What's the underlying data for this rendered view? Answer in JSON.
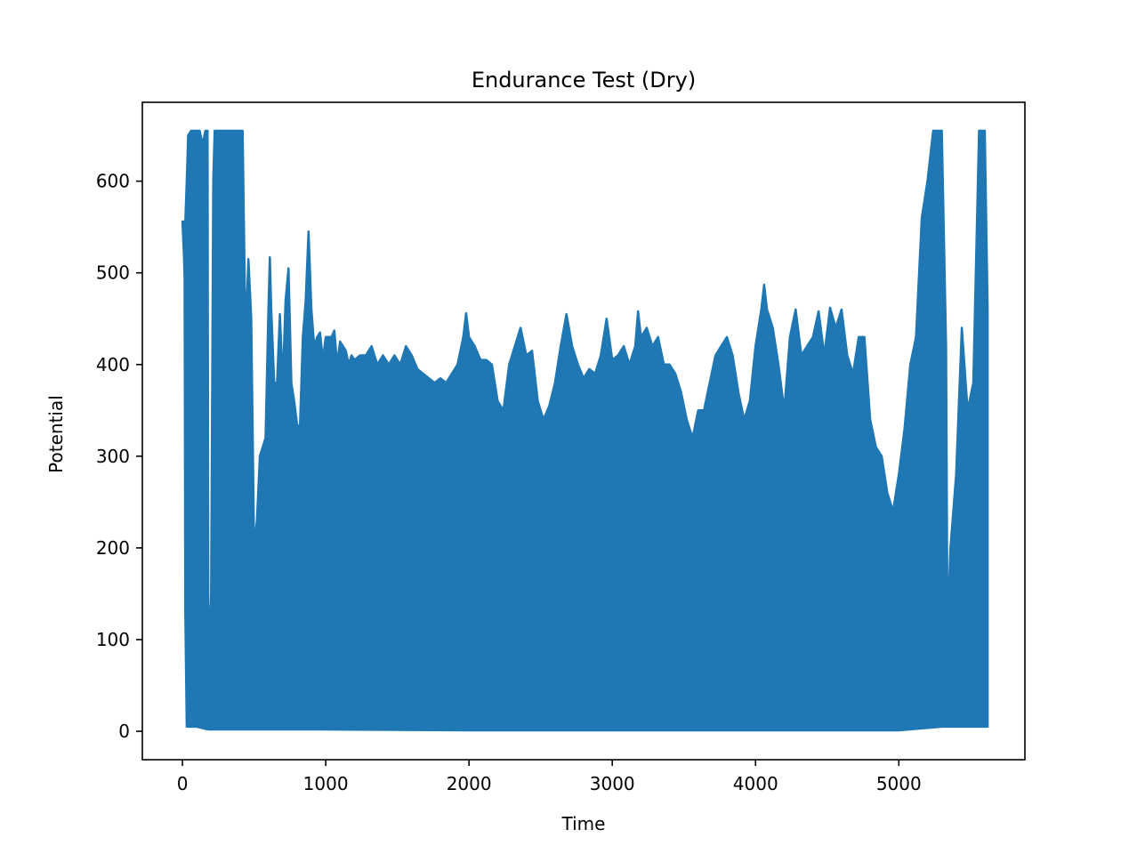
{
  "chart_data": {
    "type": "line",
    "title": "Endurance Test (Dry)",
    "xlabel": "Time",
    "ylabel": "Potential",
    "xlim": [
      -280,
      5880
    ],
    "ylim": [
      -31,
      686
    ],
    "xticks": [
      0,
      1000,
      2000,
      3000,
      4000,
      5000
    ],
    "yticks": [
      0,
      100,
      200,
      300,
      400,
      500,
      600
    ],
    "grid": false,
    "legend": "none",
    "series_color": "#1f77b4",
    "series": [
      {
        "upper_envelope": [
          [
            0,
            556
          ],
          [
            10,
            556
          ],
          [
            15,
            495
          ],
          [
            20,
            556
          ],
          [
            30,
            600
          ],
          [
            40,
            650
          ],
          [
            60,
            655
          ],
          [
            120,
            655
          ],
          [
            140,
            640
          ],
          [
            160,
            655
          ],
          [
            175,
            655
          ],
          [
            180,
            140
          ],
          [
            190,
            100
          ],
          [
            200,
            150
          ],
          [
            215,
            600
          ],
          [
            225,
            655
          ],
          [
            300,
            655
          ],
          [
            380,
            655
          ],
          [
            420,
            655
          ],
          [
            440,
            430
          ],
          [
            460,
            515
          ],
          [
            480,
            450
          ],
          [
            500,
            200
          ],
          [
            520,
            230
          ],
          [
            540,
            300
          ],
          [
            560,
            310
          ],
          [
            580,
            320
          ],
          [
            600,
            460
          ],
          [
            610,
            517
          ],
          [
            620,
            460
          ],
          [
            640,
            380
          ],
          [
            660,
            380
          ],
          [
            680,
            455
          ],
          [
            700,
            380
          ],
          [
            720,
            470
          ],
          [
            740,
            505
          ],
          [
            760,
            380
          ],
          [
            780,
            360
          ],
          [
            800,
            335
          ],
          [
            820,
            330
          ],
          [
            840,
            430
          ],
          [
            860,
            470
          ],
          [
            880,
            545
          ],
          [
            900,
            460
          ],
          [
            920,
            420
          ],
          [
            940,
            430
          ],
          [
            960,
            435
          ],
          [
            980,
            405
          ],
          [
            1000,
            430
          ],
          [
            1020,
            430
          ],
          [
            1040,
            430
          ],
          [
            1060,
            437
          ],
          [
            1080,
            400
          ],
          [
            1100,
            425
          ],
          [
            1120,
            420
          ],
          [
            1140,
            415
          ],
          [
            1160,
            400
          ],
          [
            1180,
            410
          ],
          [
            1200,
            405
          ],
          [
            1240,
            410
          ],
          [
            1280,
            410
          ],
          [
            1320,
            420
          ],
          [
            1360,
            400
          ],
          [
            1400,
            410
          ],
          [
            1440,
            400
          ],
          [
            1480,
            410
          ],
          [
            1520,
            400
          ],
          [
            1560,
            420
          ],
          [
            1600,
            410
          ],
          [
            1640,
            395
          ],
          [
            1680,
            390
          ],
          [
            1720,
            385
          ],
          [
            1760,
            380
          ],
          [
            1800,
            385
          ],
          [
            1840,
            380
          ],
          [
            1880,
            390
          ],
          [
            1920,
            400
          ],
          [
            1960,
            430
          ],
          [
            1980,
            456
          ],
          [
            2000,
            430
          ],
          [
            2040,
            420
          ],
          [
            2080,
            405
          ],
          [
            2120,
            405
          ],
          [
            2160,
            400
          ],
          [
            2200,
            360
          ],
          [
            2240,
            350
          ],
          [
            2280,
            400
          ],
          [
            2320,
            420
          ],
          [
            2360,
            440
          ],
          [
            2400,
            410
          ],
          [
            2440,
            415
          ],
          [
            2480,
            360
          ],
          [
            2520,
            340
          ],
          [
            2560,
            355
          ],
          [
            2600,
            380
          ],
          [
            2640,
            420
          ],
          [
            2680,
            455
          ],
          [
            2720,
            420
          ],
          [
            2760,
            400
          ],
          [
            2800,
            385
          ],
          [
            2840,
            395
          ],
          [
            2880,
            390
          ],
          [
            2920,
            410
          ],
          [
            2960,
            450
          ],
          [
            3000,
            405
          ],
          [
            3040,
            410
          ],
          [
            3080,
            420
          ],
          [
            3120,
            400
          ],
          [
            3160,
            420
          ],
          [
            3180,
            458
          ],
          [
            3200,
            430
          ],
          [
            3240,
            440
          ],
          [
            3280,
            420
          ],
          [
            3320,
            430
          ],
          [
            3360,
            400
          ],
          [
            3400,
            400
          ],
          [
            3440,
            390
          ],
          [
            3480,
            370
          ],
          [
            3520,
            340
          ],
          [
            3560,
            320
          ],
          [
            3600,
            350
          ],
          [
            3640,
            350
          ],
          [
            3680,
            380
          ],
          [
            3720,
            410
          ],
          [
            3760,
            420
          ],
          [
            3800,
            430
          ],
          [
            3840,
            410
          ],
          [
            3880,
            370
          ],
          [
            3920,
            340
          ],
          [
            3960,
            360
          ],
          [
            4000,
            420
          ],
          [
            4040,
            460
          ],
          [
            4060,
            487
          ],
          [
            4080,
            460
          ],
          [
            4120,
            440
          ],
          [
            4160,
            400
          ],
          [
            4200,
            350
          ],
          [
            4240,
            430
          ],
          [
            4280,
            460
          ],
          [
            4320,
            410
          ],
          [
            4360,
            420
          ],
          [
            4400,
            430
          ],
          [
            4440,
            458
          ],
          [
            4480,
            410
          ],
          [
            4520,
            462
          ],
          [
            4560,
            440
          ],
          [
            4600,
            460
          ],
          [
            4640,
            410
          ],
          [
            4680,
            390
          ],
          [
            4720,
            430
          ],
          [
            4760,
            430
          ],
          [
            4800,
            340
          ],
          [
            4840,
            310
          ],
          [
            4880,
            300
          ],
          [
            4920,
            260
          ],
          [
            4960,
            240
          ],
          [
            5000,
            280
          ],
          [
            5040,
            330
          ],
          [
            5080,
            400
          ],
          [
            5120,
            430
          ],
          [
            5160,
            560
          ],
          [
            5200,
            600
          ],
          [
            5240,
            655
          ],
          [
            5300,
            655
          ],
          [
            5330,
            420
          ],
          [
            5340,
            100
          ],
          [
            5360,
            200
          ],
          [
            5400,
            280
          ],
          [
            5440,
            440
          ],
          [
            5480,
            350
          ],
          [
            5520,
            380
          ],
          [
            5560,
            655
          ],
          [
            5600,
            655
          ],
          [
            5620,
            460
          ]
        ],
        "lower_envelope": [
          [
            0,
            555
          ],
          [
            10,
            520
          ],
          [
            15,
            495
          ],
          [
            20,
            130
          ],
          [
            30,
            5
          ],
          [
            100,
            5
          ],
          [
            180,
            2
          ],
          [
            1000,
            2
          ],
          [
            2000,
            1
          ],
          [
            3000,
            1
          ],
          [
            4000,
            1
          ],
          [
            5000,
            1
          ],
          [
            5300,
            5
          ],
          [
            5600,
            5
          ],
          [
            5620,
            5
          ]
        ]
      }
    ]
  }
}
